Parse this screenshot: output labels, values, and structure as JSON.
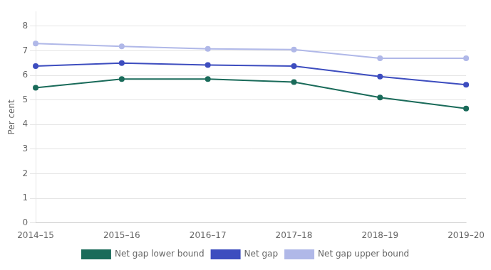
{
  "chart_data": {
    "type": "line",
    "categories": [
      "2014–15",
      "2015–16",
      "2016–17",
      "2017–18",
      "2018–19",
      "2019–20"
    ],
    "series": [
      {
        "name": "Net gap lower bound",
        "color": "#1a6b5a",
        "values": [
          5.5,
          5.85,
          5.85,
          5.73,
          5.1,
          4.65
        ]
      },
      {
        "name": "Net gap",
        "color": "#3d4dbf",
        "values": [
          6.38,
          6.5,
          6.42,
          6.38,
          5.95,
          5.62
        ]
      },
      {
        "name": "Net gap upper bound",
        "color": "#b0b8e8",
        "values": [
          7.3,
          7.18,
          7.08,
          7.05,
          6.7,
          6.7
        ]
      }
    ],
    "ylabel": "Per cent",
    "ylim": [
      0,
      8.6
    ],
    "yticks": [
      0,
      1,
      2,
      3,
      4,
      5,
      6,
      7,
      8
    ],
    "grid": true,
    "legend": "bottom"
  }
}
